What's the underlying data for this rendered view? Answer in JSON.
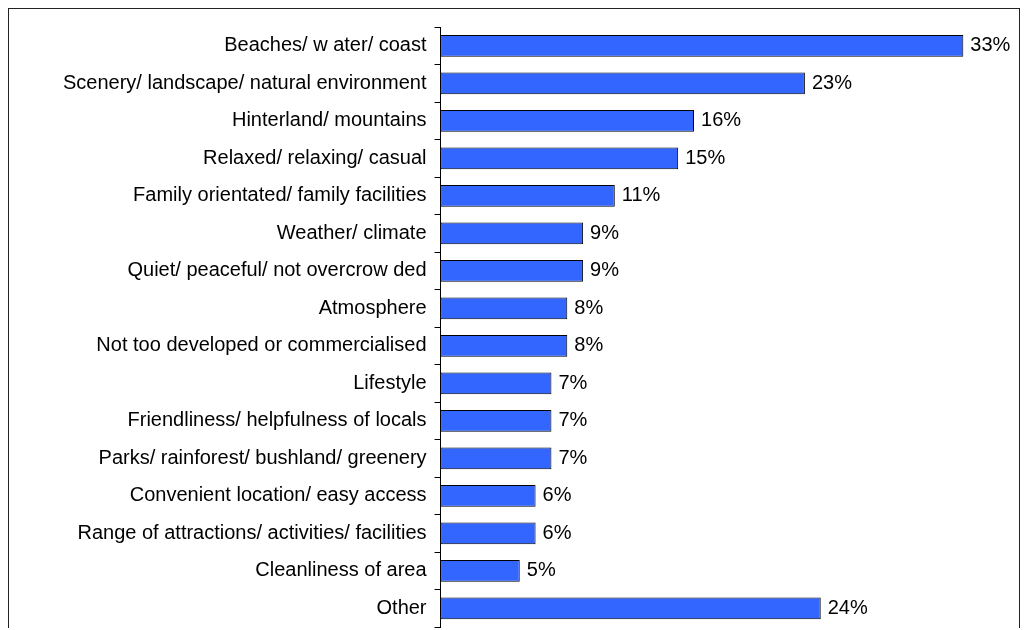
{
  "chart_data": {
    "type": "bar",
    "orientation": "horizontal",
    "categories": [
      "Beaches/ w ater/ coast",
      "Scenery/ landscape/ natural environment",
      "Hinterland/ mountains",
      "Relaxed/ relaxing/ casual",
      "Family orientated/ family facilities",
      "Weather/ climate",
      "Quiet/ peaceful/ not overcrow ded",
      "Atmosphere",
      "Not too developed or commercialised",
      "Lifestyle",
      "Friendliness/ helpfulness of locals",
      "Parks/ rainforest/ bushland/ greenery",
      "Convenient location/ easy access",
      "Range of attractions/ activities/ facilities",
      "Cleanliness of area",
      "Other"
    ],
    "values": [
      33,
      23,
      16,
      15,
      11,
      9,
      9,
      8,
      8,
      7,
      7,
      7,
      6,
      6,
      5,
      24
    ],
    "value_labels": [
      "33%",
      "23%",
      "16%",
      "15%",
      "11%",
      "9%",
      "9%",
      "8%",
      "8%",
      "7%",
      "7%",
      "7%",
      "6%",
      "6%",
      "5%",
      "24%"
    ],
    "color": "#3366ff",
    "tick_labels": "y"
  }
}
